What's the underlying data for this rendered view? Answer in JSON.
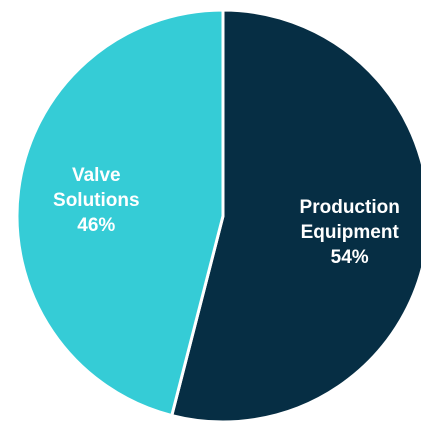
{
  "chart_data": {
    "type": "pie",
    "start": "top",
    "direction": "clockwise",
    "categories": [
      "Production Equipment",
      "Valve Solutions"
    ],
    "values": [
      54,
      46
    ],
    "slices": [
      {
        "name": "Production Equipment",
        "value": 54,
        "label_lines": [
          "Production",
          "Equipment",
          "54%"
        ],
        "color": "#062e44"
      },
      {
        "name": "Valve Solutions",
        "value": 46,
        "label_lines": [
          "Valve",
          "Solutions",
          "46%"
        ],
        "color": "#35ccd6"
      }
    ],
    "legend": "none",
    "slice_border_color": "#ffffff"
  }
}
